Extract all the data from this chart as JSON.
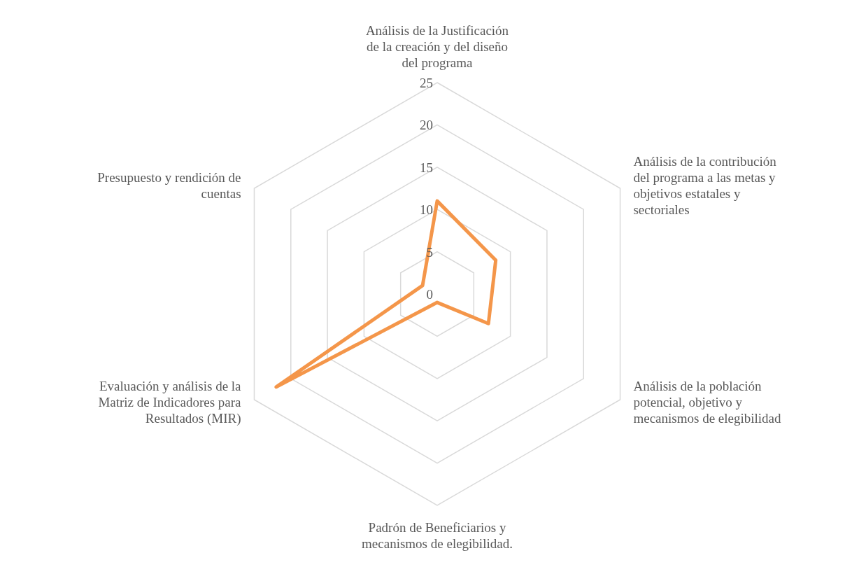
{
  "chart_data": {
    "type": "radar",
    "categories": [
      "Análisis de la Justificación de la creación y del diseño del programa",
      "Análisis de la contribución del programa a las metas y objetivos estatales y sectoriales",
      "Análisis de la población potencial, objetivo y mecanismos de elegibilidad",
      "Padrón de Beneficiarios y mecanismos de elegibilidad.",
      "Evaluación y análisis de la Matriz de Indicadores para Resultados (MIR)",
      "Presupuesto y rendición de cuentas"
    ],
    "series": [
      {
        "color": "#f4964a",
        "values": [
          11,
          8,
          7,
          1,
          22,
          2
        ]
      }
    ],
    "ylim": [
      0,
      25
    ],
    "yticks": [
      0,
      5,
      10,
      15,
      20,
      25
    ],
    "grid": true,
    "legend": false,
    "marker": "none",
    "line_style": "solid"
  }
}
